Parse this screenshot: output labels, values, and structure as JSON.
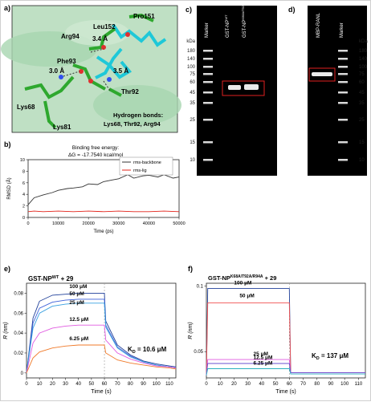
{
  "figure": {
    "panel_letters": {
      "a": "a)",
      "b": "b)",
      "c": "c)",
      "d": "d)",
      "e": "e)",
      "f": "f)"
    }
  },
  "panel_a": {
    "residues": [
      "Pro151",
      "Leu152",
      "Arg94",
      "Phe93",
      "Lys68",
      "Lys81",
      "Thr92"
    ],
    "distances": [
      "3.4 Å",
      "3.0 Å",
      "3.5 Å"
    ],
    "hbond_title": "Hydrogen bonds:",
    "hbond_residues": "Lys68, Thr92, Arg94"
  },
  "panel_b": {
    "title_line1": "Binding free energy:",
    "title_line2": "ΔG = -17.7540 kcal/mol",
    "legend": [
      "rms-backbone",
      "rms-lig"
    ],
    "colors": {
      "backbone": "#333333",
      "lig": "#e2231a"
    }
  },
  "panel_c": {
    "lanes": [
      "Marker",
      "GST-NP",
      "GST-NP"
    ],
    "lane_sups": [
      "",
      "WT",
      "K68A/T92A/R94A"
    ],
    "kda_label": "kDa",
    "kda": [
      "180",
      "140",
      "100",
      "75",
      "60",
      "45",
      "35",
      "25",
      "15",
      "10"
    ]
  },
  "panel_d": {
    "lanes": [
      "MBP-RANL",
      "Marker"
    ],
    "kda_label": "kDa",
    "kda": [
      "180",
      "140",
      "100",
      "75",
      "60",
      "45",
      "35",
      "25",
      "15",
      "10"
    ]
  },
  "panel_e": {
    "title": "GST-NP",
    "title_sup": "WT",
    "title_suffix": " + 29",
    "kd": "K",
    "kd_sub": "D",
    "kd_value": " = 10.6 μM",
    "conc_labels": [
      "100 μM",
      "50 μM",
      "25 μM",
      "12.5 μM",
      "6.25 μM"
    ],
    "colors": [
      "#1f3f99",
      "#3b5fd9",
      "#38a0e0",
      "#e05ae0",
      "#f07a2a"
    ]
  },
  "panel_f": {
    "title": "GST-NP",
    "title_sup": "K68A/T92A/R94A",
    "title_suffix": " + 29",
    "kd": "K",
    "kd_sub": "D",
    "kd_value": " = 137 μM",
    "conc_labels": [
      "100 μM",
      "50 μM",
      "25 μM",
      "12.5 μM",
      "6.25 μM"
    ],
    "colors": [
      "#1f3f99",
      "#f05050",
      "#e05ae0",
      "#6a4fd0",
      "#2ab0c0"
    ]
  },
  "chart_data": [
    {
      "type": "line",
      "panel": "b",
      "xlabel": "Time (ps)",
      "ylabel": "RMSD (Å)",
      "x_ticks": [
        0,
        10000,
        20000,
        30000,
        40000,
        50000
      ],
      "y_ticks": [
        0,
        2,
        4,
        6,
        8,
        10
      ],
      "xlim": [
        0,
        50000
      ],
      "ylim": [
        0,
        10
      ],
      "series": [
        {
          "name": "rms-backbone",
          "x": [
            0,
            2000,
            5000,
            8000,
            10000,
            13000,
            15000,
            18000,
            20000,
            23000,
            25000,
            28000,
            30000,
            33000,
            35000,
            38000,
            40000,
            43000,
            45000,
            48000,
            50000
          ],
          "values": [
            2.2,
            3.4,
            3.9,
            4.3,
            4.7,
            5.0,
            5.1,
            5.3,
            5.8,
            5.7,
            6.2,
            6.5,
            6.7,
            7.4,
            6.8,
            7.2,
            7.3,
            7.0,
            7.4,
            6.8,
            7.0
          ]
        },
        {
          "name": "rms-lig",
          "x": [
            0,
            2000,
            5000,
            10000,
            15000,
            20000,
            25000,
            30000,
            35000,
            40000,
            45000,
            50000
          ],
          "values": [
            1.0,
            1.1,
            1.0,
            1.1,
            1.0,
            1.1,
            1.0,
            1.1,
            1.0,
            1.0,
            1.1,
            1.0
          ]
        }
      ]
    },
    {
      "type": "line",
      "panel": "e",
      "xlabel": "Time (s)",
      "ylabel": "R (nm)",
      "x_ticks": [
        0,
        10,
        20,
        30,
        40,
        50,
        60,
        70,
        80,
        90,
        100,
        110
      ],
      "y_ticks": [
        0,
        0.02,
        0.04,
        0.06,
        0.08
      ],
      "xlim": [
        0,
        115
      ],
      "ylim": [
        -0.005,
        0.09
      ],
      "series": [
        {
          "name": "100 μM",
          "x": [
            0,
            5,
            10,
            20,
            30,
            40,
            50,
            60,
            61,
            70,
            80,
            90,
            100,
            110,
            115
          ],
          "values": [
            0,
            0.055,
            0.072,
            0.078,
            0.079,
            0.08,
            0.08,
            0.08,
            0.052,
            0.028,
            0.018,
            0.012,
            0.009,
            0.007,
            0.006
          ]
        },
        {
          "name": "50 μM",
          "x": [
            0,
            5,
            10,
            20,
            30,
            40,
            50,
            60,
            61,
            70,
            80,
            90,
            100,
            110,
            115
          ],
          "values": [
            0,
            0.05,
            0.065,
            0.071,
            0.073,
            0.074,
            0.074,
            0.074,
            0.048,
            0.026,
            0.017,
            0.011,
            0.008,
            0.006,
            0.005
          ]
        },
        {
          "name": "25 μM",
          "x": [
            0,
            5,
            10,
            20,
            30,
            40,
            50,
            60,
            61,
            70,
            80,
            90,
            100,
            110,
            115
          ],
          "values": [
            0,
            0.045,
            0.06,
            0.067,
            0.069,
            0.07,
            0.07,
            0.07,
            0.046,
            0.025,
            0.016,
            0.011,
            0.008,
            0.006,
            0.005
          ]
        },
        {
          "name": "12.5 μM",
          "x": [
            0,
            5,
            10,
            20,
            30,
            40,
            50,
            60,
            61,
            70,
            80,
            90,
            100,
            110,
            115
          ],
          "values": [
            0,
            0.03,
            0.04,
            0.045,
            0.047,
            0.048,
            0.048,
            0.048,
            0.033,
            0.02,
            0.014,
            0.01,
            0.007,
            0.006,
            0.005
          ]
        },
        {
          "name": "6.25 μM",
          "x": [
            0,
            5,
            10,
            20,
            30,
            40,
            50,
            60,
            61,
            70,
            80,
            90,
            100,
            110,
            115
          ],
          "values": [
            0,
            0.015,
            0.021,
            0.025,
            0.027,
            0.028,
            0.028,
            0.028,
            0.02,
            0.013,
            0.01,
            0.008,
            0.006,
            0.005,
            0.004
          ]
        }
      ]
    },
    {
      "type": "line",
      "panel": "f",
      "xlabel": "Time (s)",
      "ylabel": "R (nm)",
      "x_ticks": [
        0,
        10,
        20,
        30,
        40,
        50,
        60,
        70,
        80,
        90,
        100,
        110
      ],
      "y_ticks": [
        0.05,
        0.1
      ],
      "xlim": [
        0,
        115
      ],
      "ylim": [
        0.03,
        0.102
      ],
      "series": [
        {
          "name": "100 μM",
          "x": [
            0,
            1,
            10,
            20,
            30,
            40,
            50,
            60,
            61,
            70,
            80,
            90,
            100,
            110,
            115
          ],
          "values": [
            0.032,
            0.098,
            0.098,
            0.098,
            0.098,
            0.098,
            0.098,
            0.098,
            0.034,
            0.034,
            0.034,
            0.034,
            0.034,
            0.034,
            0.034
          ]
        },
        {
          "name": "50 μM",
          "x": [
            0,
            1,
            10,
            20,
            30,
            40,
            50,
            60,
            61,
            70,
            80,
            90,
            100,
            110,
            115
          ],
          "values": [
            0.032,
            0.087,
            0.087,
            0.087,
            0.087,
            0.087,
            0.087,
            0.087,
            0.034,
            0.034,
            0.034,
            0.034,
            0.034,
            0.034,
            0.034
          ]
        },
        {
          "name": "25 μM",
          "x": [
            0,
            1,
            10,
            20,
            30,
            40,
            50,
            60,
            61,
            70,
            80,
            90,
            100,
            110,
            115
          ],
          "values": [
            0.032,
            0.044,
            0.044,
            0.044,
            0.044,
            0.044,
            0.044,
            0.044,
            0.034,
            0.034,
            0.034,
            0.034,
            0.034,
            0.034,
            0.034
          ]
        },
        {
          "name": "12.5 μM",
          "x": [
            0,
            1,
            10,
            20,
            30,
            40,
            50,
            60,
            61,
            70,
            80,
            90,
            100,
            110,
            115
          ],
          "values": [
            0.032,
            0.041,
            0.041,
            0.041,
            0.041,
            0.041,
            0.041,
            0.041,
            0.034,
            0.034,
            0.034,
            0.034,
            0.034,
            0.034,
            0.034
          ]
        },
        {
          "name": "6.25 μM",
          "x": [
            0,
            1,
            10,
            20,
            30,
            40,
            50,
            60,
            61,
            70,
            80,
            90,
            100,
            110,
            115
          ],
          "values": [
            0.032,
            0.037,
            0.037,
            0.037,
            0.037,
            0.037,
            0.037,
            0.037,
            0.033,
            0.033,
            0.033,
            0.033,
            0.033,
            0.033,
            0.033
          ]
        }
      ]
    }
  ]
}
